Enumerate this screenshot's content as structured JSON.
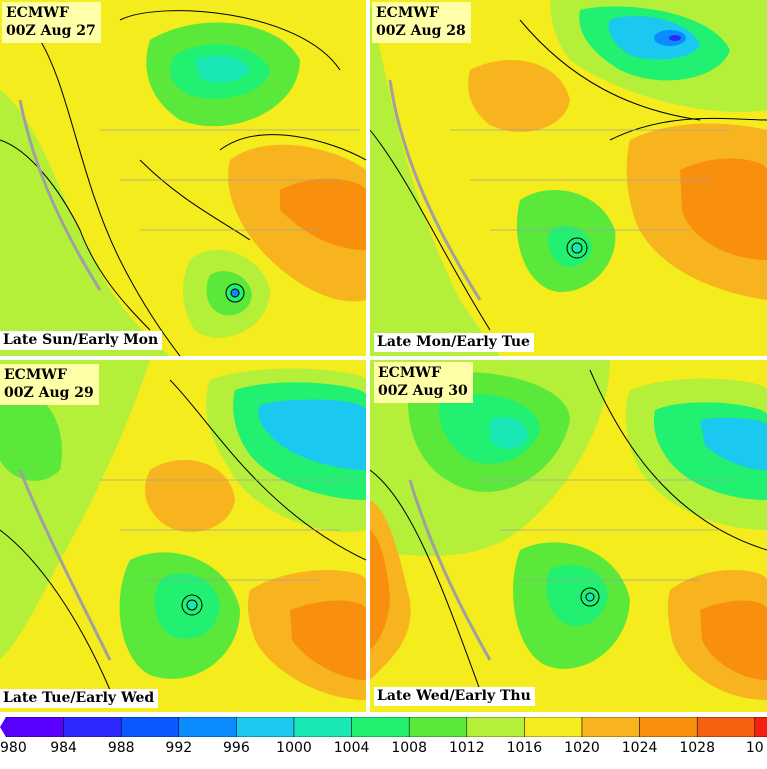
{
  "panels": [
    {
      "model": "ECMWF",
      "run": "00Z Aug 27",
      "caption": "Late Sun/Early Mon"
    },
    {
      "model": "ECMWF",
      "run": "00Z Aug 28",
      "caption": "Late Mon/Early Tue"
    },
    {
      "model": "ECMWF",
      "run": "00Z Aug 29",
      "caption": "Late Tue/Early Wed"
    },
    {
      "model": "ECMWF",
      "run": "00Z Aug 30",
      "caption": "Late Wed/Early Thu"
    }
  ],
  "colorbar": {
    "labels": [
      "980",
      "984",
      "988",
      "992",
      "996",
      "1000",
      "1004",
      "1008",
      "1012",
      "1016",
      "1020",
      "1024",
      "1028",
      "10"
    ],
    "colors": [
      "#5a00ff",
      "#2c28ff",
      "#0a58ff",
      "#0a8cff",
      "#1ac8f0",
      "#19e8b4",
      "#22f070",
      "#5ae83a",
      "#b4f03a",
      "#f4ec1c",
      "#f8b41e",
      "#f8900e",
      "#f46010",
      "#f42010"
    ]
  },
  "map_colors": {
    "low": "#22d0c0",
    "mid": "#5ae83a",
    "light": "#b4f03a",
    "high": "#f4ec1c",
    "ridge": "#f8b41e",
    "peak": "#f8900e",
    "coast": "#a0a0a0"
  }
}
